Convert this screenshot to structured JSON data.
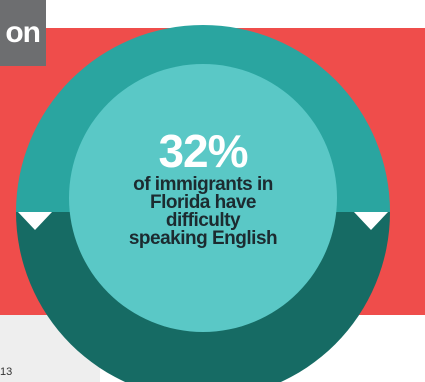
{
  "header": {
    "title_fragment": "on"
  },
  "stat": {
    "value": "32%",
    "description": "of immigrants in Florida have difficulty speaking English"
  },
  "footer": {
    "text": "13"
  },
  "colors": {
    "background_band": "#ef4d4b",
    "ring_upper": "#2aa5a0",
    "ring_lower": "#166b64",
    "inner_circle": "#5ac8c6",
    "title_tab": "#6d6e70"
  },
  "icons": {
    "left_marker": "triangle-down-icon",
    "right_marker": "triangle-down-icon"
  }
}
